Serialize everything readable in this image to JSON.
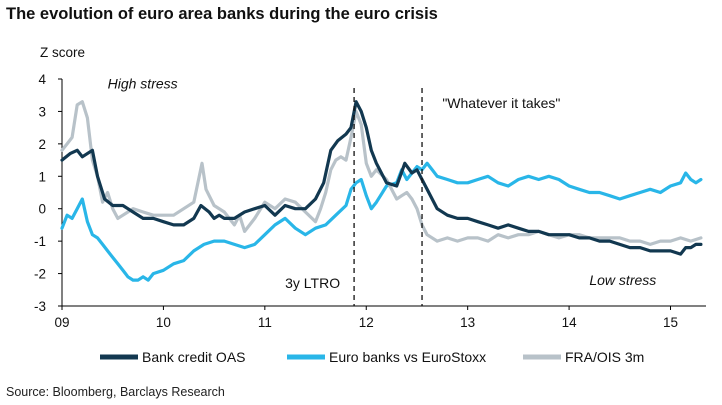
{
  "title": "The evolution of euro area banks during the euro crisis",
  "source": "Source: Bloomberg, Barclays Research",
  "chart_data": {
    "type": "line",
    "title": "The evolution of euro area banks during the euro crisis",
    "ylabel": "Z score",
    "xlabel": "",
    "xlim": [
      2009.0,
      2015.35
    ],
    "ylim": [
      -3,
      4
    ],
    "yticks": [
      4,
      3,
      2,
      1,
      0,
      -1,
      -2,
      -3
    ],
    "xticks": [
      {
        "value": 2009,
        "label": "09"
      },
      {
        "value": 2010,
        "label": "10"
      },
      {
        "value": 2011,
        "label": "11"
      },
      {
        "value": 2012,
        "label": "12"
      },
      {
        "value": 2013,
        "label": "13"
      },
      {
        "value": 2014,
        "label": "14"
      },
      {
        "value": 2015,
        "label": "15"
      }
    ],
    "grid": false,
    "legend_position": "bottom",
    "annotations": [
      {
        "text": "High stress",
        "x": 2009.45,
        "y": 3.7,
        "style": "italic"
      },
      {
        "text": "\"Whatever it takes\"",
        "x": 2012.75,
        "y": 3.1,
        "style": "normal"
      },
      {
        "text": "3y LTRO",
        "x": 2011.2,
        "y": -2.45,
        "style": "normal"
      },
      {
        "text": "Low stress",
        "x": 2014.2,
        "y": -2.35,
        "style": "italic"
      }
    ],
    "vlines": [
      {
        "x": 2011.88,
        "label": "3y LTRO"
      },
      {
        "x": 2012.55,
        "label": "\"Whatever it takes\""
      }
    ],
    "series": [
      {
        "name": "Bank credit OAS",
        "color": "#123850",
        "points": [
          [
            2009.0,
            1.5
          ],
          [
            2009.08,
            1.7
          ],
          [
            2009.15,
            1.8
          ],
          [
            2009.2,
            1.6
          ],
          [
            2009.3,
            1.8
          ],
          [
            2009.35,
            1.0
          ],
          [
            2009.42,
            0.3
          ],
          [
            2009.5,
            0.1
          ],
          [
            2009.6,
            0.1
          ],
          [
            2009.7,
            -0.1
          ],
          [
            2009.8,
            -0.3
          ],
          [
            2009.9,
            -0.3
          ],
          [
            2010.0,
            -0.4
          ],
          [
            2010.1,
            -0.5
          ],
          [
            2010.2,
            -0.5
          ],
          [
            2010.3,
            -0.3
          ],
          [
            2010.37,
            0.1
          ],
          [
            2010.45,
            -0.1
          ],
          [
            2010.5,
            -0.3
          ],
          [
            2010.55,
            -0.2
          ],
          [
            2010.6,
            -0.3
          ],
          [
            2010.7,
            -0.3
          ],
          [
            2010.8,
            -0.1
          ],
          [
            2010.9,
            0.0
          ],
          [
            2011.0,
            0.1
          ],
          [
            2011.1,
            -0.2
          ],
          [
            2011.2,
            0.1
          ],
          [
            2011.3,
            0.0
          ],
          [
            2011.4,
            0.0
          ],
          [
            2011.5,
            0.3
          ],
          [
            2011.58,
            0.8
          ],
          [
            2011.65,
            1.8
          ],
          [
            2011.72,
            2.1
          ],
          [
            2011.8,
            2.3
          ],
          [
            2011.85,
            2.5
          ],
          [
            2011.9,
            3.3
          ],
          [
            2011.95,
            3.0
          ],
          [
            2012.0,
            2.5
          ],
          [
            2012.05,
            1.8
          ],
          [
            2012.1,
            1.4
          ],
          [
            2012.2,
            0.8
          ],
          [
            2012.3,
            0.7
          ],
          [
            2012.38,
            1.4
          ],
          [
            2012.45,
            1.1
          ],
          [
            2012.5,
            1.2
          ],
          [
            2012.55,
            0.9
          ],
          [
            2012.6,
            0.6
          ],
          [
            2012.7,
            0.0
          ],
          [
            2012.8,
            -0.2
          ],
          [
            2012.9,
            -0.3
          ],
          [
            2013.0,
            -0.3
          ],
          [
            2013.1,
            -0.4
          ],
          [
            2013.2,
            -0.5
          ],
          [
            2013.3,
            -0.6
          ],
          [
            2013.4,
            -0.5
          ],
          [
            2013.5,
            -0.6
          ],
          [
            2013.6,
            -0.7
          ],
          [
            2013.7,
            -0.7
          ],
          [
            2013.8,
            -0.8
          ],
          [
            2013.9,
            -0.8
          ],
          [
            2014.0,
            -0.8
          ],
          [
            2014.1,
            -0.9
          ],
          [
            2014.2,
            -0.9
          ],
          [
            2014.3,
            -1.0
          ],
          [
            2014.4,
            -1.0
          ],
          [
            2014.5,
            -1.1
          ],
          [
            2014.6,
            -1.2
          ],
          [
            2014.7,
            -1.2
          ],
          [
            2014.8,
            -1.3
          ],
          [
            2014.9,
            -1.3
          ],
          [
            2015.0,
            -1.3
          ],
          [
            2015.1,
            -1.4
          ],
          [
            2015.15,
            -1.2
          ],
          [
            2015.2,
            -1.2
          ],
          [
            2015.25,
            -1.1
          ],
          [
            2015.3,
            -1.1
          ]
        ]
      },
      {
        "name": "Euro banks vs EuroStoxx",
        "color": "#29b6e8",
        "points": [
          [
            2009.0,
            -0.6
          ],
          [
            2009.05,
            -0.2
          ],
          [
            2009.1,
            -0.3
          ],
          [
            2009.15,
            0.0
          ],
          [
            2009.2,
            0.3
          ],
          [
            2009.25,
            -0.4
          ],
          [
            2009.3,
            -0.8
          ],
          [
            2009.35,
            -0.9
          ],
          [
            2009.4,
            -1.1
          ],
          [
            2009.45,
            -1.3
          ],
          [
            2009.5,
            -1.5
          ],
          [
            2009.55,
            -1.7
          ],
          [
            2009.6,
            -1.9
          ],
          [
            2009.65,
            -2.1
          ],
          [
            2009.7,
            -2.2
          ],
          [
            2009.75,
            -2.2
          ],
          [
            2009.8,
            -2.1
          ],
          [
            2009.85,
            -2.2
          ],
          [
            2009.9,
            -2.0
          ],
          [
            2010.0,
            -1.9
          ],
          [
            2010.1,
            -1.7
          ],
          [
            2010.2,
            -1.6
          ],
          [
            2010.3,
            -1.3
          ],
          [
            2010.4,
            -1.1
          ],
          [
            2010.5,
            -1.0
          ],
          [
            2010.6,
            -1.0
          ],
          [
            2010.7,
            -1.1
          ],
          [
            2010.8,
            -1.2
          ],
          [
            2010.9,
            -1.1
          ],
          [
            2011.0,
            -0.8
          ],
          [
            2011.1,
            -0.5
          ],
          [
            2011.2,
            -0.3
          ],
          [
            2011.3,
            -0.6
          ],
          [
            2011.4,
            -0.8
          ],
          [
            2011.5,
            -0.6
          ],
          [
            2011.6,
            -0.5
          ],
          [
            2011.7,
            -0.2
          ],
          [
            2011.8,
            0.1
          ],
          [
            2011.85,
            0.6
          ],
          [
            2011.9,
            0.8
          ],
          [
            2011.95,
            0.9
          ],
          [
            2012.0,
            0.4
          ],
          [
            2012.05,
            0.0
          ],
          [
            2012.1,
            0.2
          ],
          [
            2012.2,
            0.7
          ],
          [
            2012.3,
            0.8
          ],
          [
            2012.35,
            1.2
          ],
          [
            2012.4,
            0.9
          ],
          [
            2012.5,
            1.3
          ],
          [
            2012.55,
            1.2
          ],
          [
            2012.6,
            1.4
          ],
          [
            2012.65,
            1.2
          ],
          [
            2012.7,
            1.0
          ],
          [
            2012.8,
            0.9
          ],
          [
            2012.9,
            0.8
          ],
          [
            2013.0,
            0.8
          ],
          [
            2013.1,
            0.9
          ],
          [
            2013.2,
            1.0
          ],
          [
            2013.3,
            0.8
          ],
          [
            2013.4,
            0.7
          ],
          [
            2013.5,
            0.9
          ],
          [
            2013.6,
            1.0
          ],
          [
            2013.7,
            0.9
          ],
          [
            2013.8,
            1.0
          ],
          [
            2013.9,
            0.9
          ],
          [
            2014.0,
            0.7
          ],
          [
            2014.1,
            0.6
          ],
          [
            2014.2,
            0.5
          ],
          [
            2014.3,
            0.5
          ],
          [
            2014.4,
            0.4
          ],
          [
            2014.5,
            0.3
          ],
          [
            2014.6,
            0.4
          ],
          [
            2014.7,
            0.5
          ],
          [
            2014.8,
            0.6
          ],
          [
            2014.9,
            0.5
          ],
          [
            2015.0,
            0.7
          ],
          [
            2015.1,
            0.8
          ],
          [
            2015.15,
            1.1
          ],
          [
            2015.2,
            0.9
          ],
          [
            2015.25,
            0.8
          ],
          [
            2015.3,
            0.9
          ]
        ]
      },
      {
        "name": "FRA/OIS 3m",
        "color": "#b8c2c9",
        "points": [
          [
            2009.0,
            1.8
          ],
          [
            2009.05,
            2.0
          ],
          [
            2009.1,
            2.2
          ],
          [
            2009.15,
            3.2
          ],
          [
            2009.2,
            3.3
          ],
          [
            2009.25,
            2.8
          ],
          [
            2009.3,
            1.5
          ],
          [
            2009.35,
            1.0
          ],
          [
            2009.4,
            0.2
          ],
          [
            2009.45,
            0.5
          ],
          [
            2009.5,
            0.0
          ],
          [
            2009.55,
            -0.3
          ],
          [
            2009.6,
            -0.2
          ],
          [
            2009.7,
            0.0
          ],
          [
            2009.8,
            -0.1
          ],
          [
            2009.9,
            -0.2
          ],
          [
            2010.0,
            -0.2
          ],
          [
            2010.1,
            -0.2
          ],
          [
            2010.2,
            0.0
          ],
          [
            2010.3,
            0.2
          ],
          [
            2010.38,
            1.4
          ],
          [
            2010.42,
            0.6
          ],
          [
            2010.5,
            0.1
          ],
          [
            2010.6,
            -0.1
          ],
          [
            2010.7,
            -0.5
          ],
          [
            2010.75,
            -0.2
          ],
          [
            2010.8,
            -0.7
          ],
          [
            2010.9,
            -0.3
          ],
          [
            2011.0,
            0.2
          ],
          [
            2011.1,
            0.0
          ],
          [
            2011.2,
            0.3
          ],
          [
            2011.3,
            0.2
          ],
          [
            2011.4,
            -0.1
          ],
          [
            2011.5,
            -0.4
          ],
          [
            2011.55,
            0.0
          ],
          [
            2011.6,
            0.5
          ],
          [
            2011.65,
            1.2
          ],
          [
            2011.7,
            1.5
          ],
          [
            2011.75,
            1.6
          ],
          [
            2011.8,
            1.5
          ],
          [
            2011.85,
            2.2
          ],
          [
            2011.9,
            3.0
          ],
          [
            2011.95,
            2.6
          ],
          [
            2012.0,
            1.4
          ],
          [
            2012.05,
            1.0
          ],
          [
            2012.1,
            1.2
          ],
          [
            2012.2,
            0.9
          ],
          [
            2012.3,
            0.3
          ],
          [
            2012.35,
            0.4
          ],
          [
            2012.4,
            0.5
          ],
          [
            2012.45,
            0.3
          ],
          [
            2012.5,
            0.0
          ],
          [
            2012.55,
            -0.5
          ],
          [
            2012.6,
            -0.8
          ],
          [
            2012.7,
            -1.0
          ],
          [
            2012.8,
            -0.9
          ],
          [
            2012.9,
            -1.0
          ],
          [
            2013.0,
            -0.9
          ],
          [
            2013.1,
            -0.9
          ],
          [
            2013.2,
            -1.0
          ],
          [
            2013.3,
            -0.8
          ],
          [
            2013.4,
            -0.9
          ],
          [
            2013.5,
            -0.8
          ],
          [
            2013.6,
            -0.8
          ],
          [
            2013.7,
            -0.7
          ],
          [
            2013.8,
            -0.8
          ],
          [
            2013.9,
            -0.9
          ],
          [
            2014.0,
            -0.8
          ],
          [
            2014.1,
            -0.8
          ],
          [
            2014.2,
            -0.9
          ],
          [
            2014.3,
            -0.9
          ],
          [
            2014.4,
            -0.9
          ],
          [
            2014.5,
            -0.9
          ],
          [
            2014.6,
            -1.0
          ],
          [
            2014.7,
            -1.0
          ],
          [
            2014.8,
            -1.1
          ],
          [
            2014.9,
            -1.0
          ],
          [
            2015.0,
            -1.0
          ],
          [
            2015.1,
            -0.9
          ],
          [
            2015.2,
            -1.0
          ],
          [
            2015.3,
            -0.9
          ]
        ]
      }
    ]
  }
}
